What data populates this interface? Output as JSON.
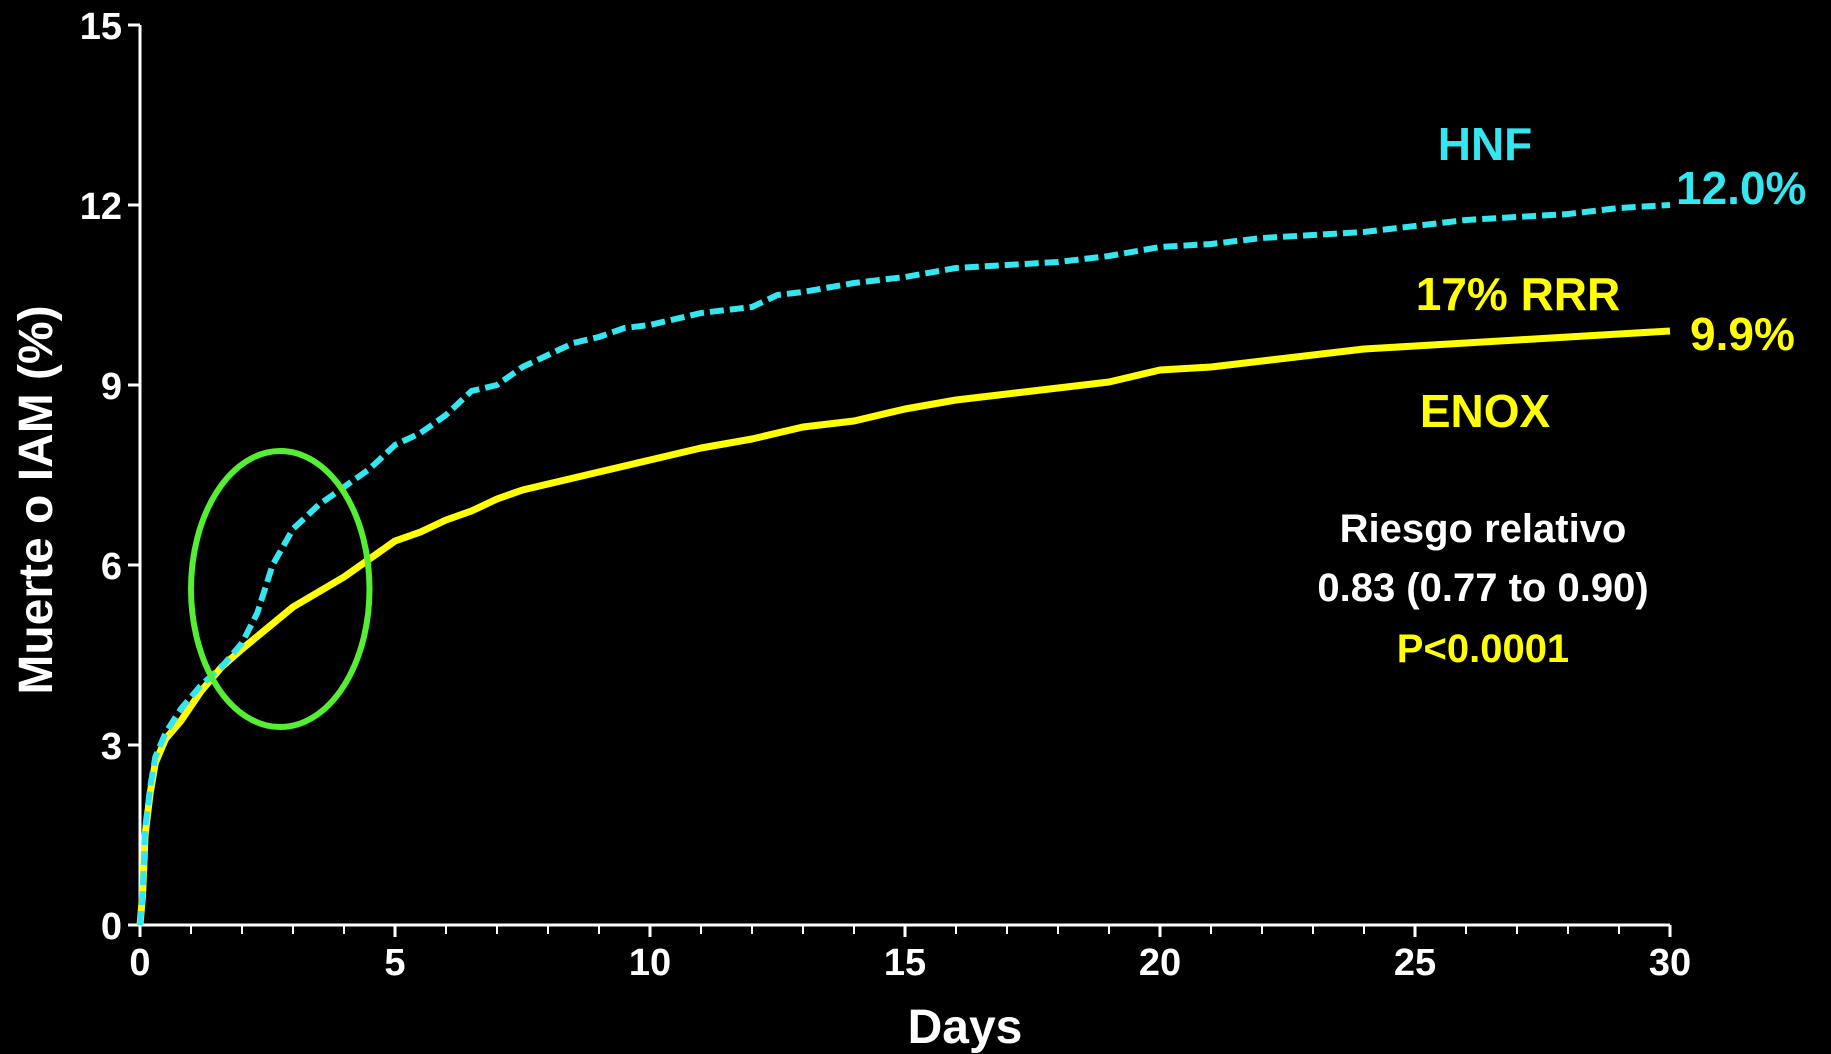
{
  "chart_data": {
    "type": "line",
    "xlabel": "Days",
    "ylabel": "Muerte o IAM (%)",
    "xlim": [
      0,
      30
    ],
    "ylim": [
      0,
      15
    ],
    "x_ticks": [
      "0",
      "5",
      "10",
      "15",
      "20",
      "25",
      "30"
    ],
    "y_ticks": [
      "0",
      "3",
      "6",
      "9",
      "12",
      "15"
    ],
    "grid": false,
    "series": [
      {
        "name": "HNF",
        "color": "#33E6F0",
        "style": "dashed",
        "end_label": "12.0%",
        "points": [
          [
            0,
            0
          ],
          [
            0.05,
            0.5
          ],
          [
            0.1,
            1.6
          ],
          [
            0.2,
            2.3
          ],
          [
            0.3,
            2.8
          ],
          [
            0.5,
            3.2
          ],
          [
            0.8,
            3.6
          ],
          [
            1.2,
            4.0
          ],
          [
            1.6,
            4.3
          ],
          [
            2.0,
            4.7
          ],
          [
            2.3,
            5.2
          ],
          [
            2.6,
            6.0
          ],
          [
            3.0,
            6.6
          ],
          [
            3.5,
            7.0
          ],
          [
            4.0,
            7.3
          ],
          [
            4.5,
            7.6
          ],
          [
            5.0,
            8.0
          ],
          [
            5.5,
            8.2
          ],
          [
            6.0,
            8.5
          ],
          [
            6.5,
            8.9
          ],
          [
            7.0,
            9.0
          ],
          [
            7.5,
            9.3
          ],
          [
            8.0,
            9.5
          ],
          [
            8.5,
            9.7
          ],
          [
            9.0,
            9.8
          ],
          [
            9.5,
            9.95
          ],
          [
            10.0,
            10.0
          ],
          [
            11.0,
            10.2
          ],
          [
            12.0,
            10.3
          ],
          [
            12.5,
            10.5
          ],
          [
            13.0,
            10.55
          ],
          [
            14.0,
            10.7
          ],
          [
            15.0,
            10.8
          ],
          [
            16.0,
            10.95
          ],
          [
            17.0,
            11.0
          ],
          [
            18.0,
            11.05
          ],
          [
            19.0,
            11.15
          ],
          [
            20.0,
            11.3
          ],
          [
            21.0,
            11.35
          ],
          [
            22.0,
            11.45
          ],
          [
            23.0,
            11.5
          ],
          [
            24.0,
            11.55
          ],
          [
            25.0,
            11.65
          ],
          [
            26.0,
            11.75
          ],
          [
            27.0,
            11.8
          ],
          [
            28.0,
            11.85
          ],
          [
            29.0,
            11.95
          ],
          [
            30.0,
            12.0
          ]
        ]
      },
      {
        "name": "ENOX",
        "color": "#FFFF00",
        "style": "solid",
        "end_label": "9.9%",
        "points": [
          [
            0,
            0
          ],
          [
            0.05,
            0.5
          ],
          [
            0.1,
            1.5
          ],
          [
            0.2,
            2.2
          ],
          [
            0.3,
            2.7
          ],
          [
            0.5,
            3.1
          ],
          [
            0.8,
            3.4
          ],
          [
            1.2,
            3.9
          ],
          [
            1.6,
            4.3
          ],
          [
            2.0,
            4.6
          ],
          [
            2.5,
            4.95
          ],
          [
            3.0,
            5.3
          ],
          [
            3.5,
            5.55
          ],
          [
            4.0,
            5.8
          ],
          [
            4.5,
            6.1
          ],
          [
            5.0,
            6.4
          ],
          [
            5.5,
            6.55
          ],
          [
            6.0,
            6.75
          ],
          [
            6.5,
            6.9
          ],
          [
            7.0,
            7.1
          ],
          [
            7.5,
            7.25
          ],
          [
            8.0,
            7.35
          ],
          [
            8.5,
            7.45
          ],
          [
            9.0,
            7.55
          ],
          [
            9.5,
            7.65
          ],
          [
            10.0,
            7.75
          ],
          [
            11.0,
            7.95
          ],
          [
            12.0,
            8.1
          ],
          [
            13.0,
            8.3
          ],
          [
            14.0,
            8.4
          ],
          [
            15.0,
            8.6
          ],
          [
            16.0,
            8.75
          ],
          [
            17.0,
            8.85
          ],
          [
            18.0,
            8.95
          ],
          [
            19.0,
            9.05
          ],
          [
            20.0,
            9.25
          ],
          [
            21.0,
            9.3
          ],
          [
            22.0,
            9.4
          ],
          [
            23.0,
            9.5
          ],
          [
            24.0,
            9.6
          ],
          [
            25.0,
            9.65
          ],
          [
            26.0,
            9.7
          ],
          [
            27.0,
            9.75
          ],
          [
            28.0,
            9.8
          ],
          [
            29.0,
            9.85
          ],
          [
            30.0,
            9.9
          ]
        ]
      }
    ],
    "annotations": {
      "hnf_label": "HNF",
      "hnf_end": "12.0%",
      "enox_end": "9.9%",
      "rrr": "17% RRR",
      "enox_label": "ENOX",
      "rr_title": "Riesgo relativo",
      "rr_value": "0.83 (0.77 to 0.90)",
      "p_value": "P<0.0001"
    },
    "highlight": {
      "shape": "ellipse",
      "color": "#55EE33",
      "x_range": [
        1.0,
        4.5
      ],
      "y_range": [
        3.3,
        7.9
      ]
    }
  }
}
